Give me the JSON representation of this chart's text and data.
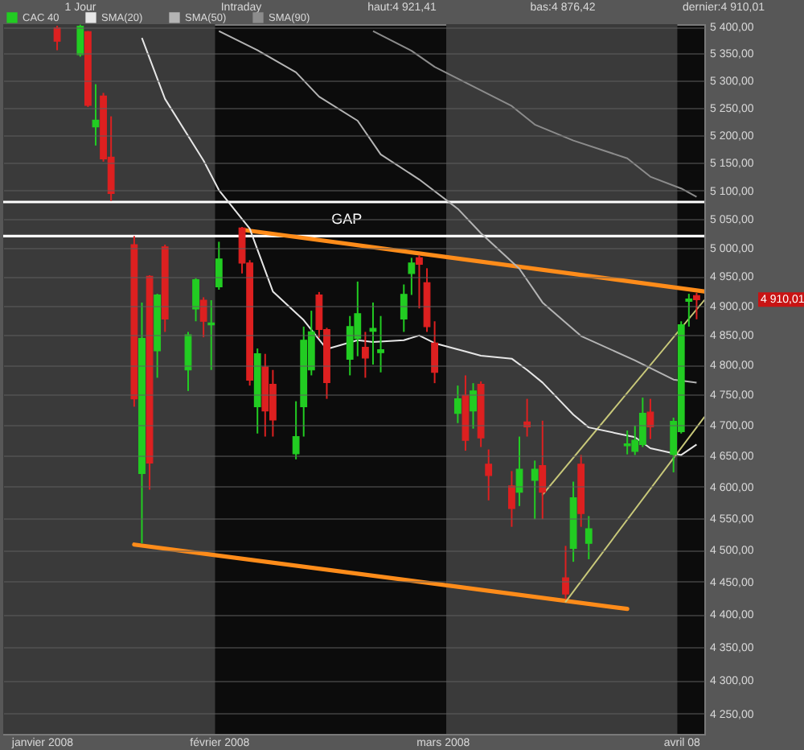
{
  "chart_data": {
    "type": "candlestick",
    "log": true,
    "grid": "y",
    "legend": "top left",
    "xlim": [
      "2008-01-04",
      "2008-04-04"
    ],
    "xticks": [
      {
        "value": "2008-01-09",
        "label": "janvier 2008"
      },
      {
        "value": "2008-02-01",
        "label": "février 2008"
      },
      {
        "value": "2008-03-01",
        "label": "mars 2008"
      },
      {
        "value": "2008-04-01",
        "label": "avril 08"
      }
    ],
    "ylim": [
      4220,
      5405
    ],
    "yticks": [
      {
        "value": 4250,
        "label": "4 250,00"
      },
      {
        "value": 4300,
        "label": "4 300,00"
      },
      {
        "value": 4350,
        "label": "4 350,00"
      },
      {
        "value": 4400,
        "label": "4 400,00"
      },
      {
        "value": 4450,
        "label": "4 450,00"
      },
      {
        "value": 4500,
        "label": "4 500,00"
      },
      {
        "value": 4550,
        "label": "4 550,00"
      },
      {
        "value": 4600,
        "label": "4 600,00"
      },
      {
        "value": 4650,
        "label": "4 650,00"
      },
      {
        "value": 4700,
        "label": "4 700,00"
      },
      {
        "value": 4750,
        "label": "4 750,00"
      },
      {
        "value": 4800,
        "label": "4 800,00"
      },
      {
        "value": 4850,
        "label": "4 850,00"
      },
      {
        "value": 4900,
        "label": "4 900,00"
      },
      {
        "value": 4950,
        "label": "4 950,00"
      },
      {
        "value": 5000,
        "label": "5 000,00"
      },
      {
        "value": 5050,
        "label": "5 050,00"
      },
      {
        "value": 5100,
        "label": "5 100,00"
      },
      {
        "value": 5150,
        "label": "5 150,00"
      },
      {
        "value": 5200,
        "label": "5 200,00"
      },
      {
        "value": 5250,
        "label": "5 250,00"
      },
      {
        "value": 5300,
        "label": "5 300,00"
      },
      {
        "value": 5350,
        "label": "5 350,00"
      },
      {
        "value": 5400,
        "label": "5 400,00"
      }
    ],
    "bands": [
      {
        "axis": "x",
        "from": "2008-01-04",
        "to": "2008-01-31T12:00",
        "color": "#3a3a3a"
      },
      {
        "axis": "x",
        "from": "2008-03-01T12:00",
        "to": "2008-03-31T12:00",
        "color": "#3a3a3a"
      }
    ],
    "ref_lines": [
      {
        "axis": "y",
        "value": 5080,
        "color": "#ffffff"
      },
      {
        "axis": "y",
        "value": 5020,
        "color": "#ffffff"
      }
    ],
    "annotations": [
      "1 Jour",
      "Intraday",
      "haut:4 921,41",
      "bas:4 876,42",
      "dernier:4 910,01",
      "GAP",
      "4 910,01"
    ],
    "series": [
      {
        "name": "CAC 40",
        "color": "#22cc22",
        "x": [
          "2008-01-11",
          "2008-01-14",
          "2008-01-15",
          "2008-01-16",
          "2008-01-17",
          "2008-01-18",
          "2008-01-21",
          "2008-01-22",
          "2008-01-23",
          "2008-01-24",
          "2008-01-25",
          "2008-01-28",
          "2008-01-29",
          "2008-01-30",
          "2008-01-31",
          "2008-02-01",
          "2008-02-04",
          "2008-02-05",
          "2008-02-06",
          "2008-02-07",
          "2008-02-08",
          "2008-02-11",
          "2008-02-12",
          "2008-02-13",
          "2008-02-14",
          "2008-02-15",
          "2008-02-18",
          "2008-02-19",
          "2008-02-20",
          "2008-02-21",
          "2008-02-22",
          "2008-02-25",
          "2008-02-26",
          "2008-02-27",
          "2008-02-28",
          "2008-02-29",
          "2008-03-03",
          "2008-03-04",
          "2008-03-05",
          "2008-03-06",
          "2008-03-07",
          "2008-03-10",
          "2008-03-11",
          "2008-03-12",
          "2008-03-13",
          "2008-03-14",
          "2008-03-17",
          "2008-03-18",
          "2008-03-19",
          "2008-03-20",
          "2008-03-25",
          "2008-03-26",
          "2008-03-27",
          "2008-03-28",
          "2008-03-31",
          "2008-04-01",
          "2008-04-02",
          "2008-04-03"
        ],
        "ohlc": [
          [
            5398,
            5402,
            5356,
            5373
          ],
          [
            5348,
            5404,
            5344,
            5401
          ],
          [
            5391,
            5392,
            5251,
            5254
          ],
          [
            5215,
            5293,
            5181,
            5227
          ],
          [
            5271,
            5277,
            5152,
            5157
          ],
          [
            5160,
            5234,
            5082,
            5095
          ],
          [
            5005,
            5020,
            4730,
            4743
          ],
          [
            4621,
            4905,
            4510,
            4844
          ],
          [
            4950,
            4952,
            4595,
            4638
          ],
          [
            4823,
            4920,
            4778,
            4918
          ],
          [
            5001,
            5005,
            4855,
            4877
          ],
          [
            4791,
            4855,
            4756,
            4850
          ],
          [
            4894,
            4947,
            4873,
            4944
          ],
          [
            4909,
            4914,
            4846,
            4873
          ],
          [
            4867,
            4909,
            4791,
            4870
          ],
          [
            4932,
            5010,
            4927,
            4980
          ],
          [
            5034,
            5036,
            4955,
            4973
          ],
          [
            4973,
            4978,
            4765,
            4774
          ],
          [
            4730,
            4827,
            4686,
            4818
          ],
          [
            4796,
            4818,
            4681,
            4723
          ],
          [
            4767,
            4791,
            4681,
            4708
          ],
          [
            4653,
            4739,
            4644,
            4681
          ],
          [
            4730,
            4864,
            4681,
            4841
          ],
          [
            4791,
            4891,
            4782,
            4855
          ],
          [
            4918,
            4923,
            4845,
            4859
          ],
          [
            4859,
            4862,
            4743,
            4770
          ],
          [
            4809,
            4882,
            4782,
            4864
          ],
          [
            4844,
            4941,
            4814,
            4886
          ],
          [
            4829,
            4855,
            4778,
            4811
          ],
          [
            4856,
            4905,
            4800,
            4861
          ],
          [
            4820,
            4882,
            4787,
            4825
          ],
          [
            4877,
            4936,
            4855,
            4919
          ],
          [
            4955,
            4982,
            4918,
            4973
          ],
          [
            4982,
            4987,
            4895,
            4971
          ],
          [
            4939,
            4964,
            4855,
            4864
          ],
          [
            4836,
            4873,
            4769,
            4787
          ],
          [
            4719,
            4765,
            4703,
            4743
          ],
          [
            4749,
            4782,
            4658,
            4675
          ],
          [
            4723,
            4769,
            4694,
            4756
          ],
          [
            4767,
            4772,
            4664,
            4679
          ],
          [
            4636,
            4660,
            4578,
            4618
          ],
          [
            4601,
            4625,
            4536,
            4565
          ],
          [
            4591,
            4681,
            4569,
            4628
          ],
          [
            4705,
            4743,
            4681,
            4697
          ],
          [
            4610,
            4642,
            4548,
            4628
          ],
          [
            4634,
            4707,
            4548,
            4591
          ],
          [
            4456,
            4506,
            4423,
            4431
          ],
          [
            4502,
            4608,
            4481,
            4582
          ],
          [
            4636,
            4651,
            4536,
            4557
          ],
          [
            4510,
            4553,
            4485,
            4533
          ],
          [
            4666,
            4691,
            4652,
            4669
          ],
          [
            4657,
            4699,
            4651,
            4675
          ],
          [
            4668,
            4745,
            4664,
            4719
          ],
          [
            4721,
            4743,
            4677,
            4697
          ],
          [
            4652,
            4712,
            4623,
            4706
          ],
          [
            4689,
            4873,
            4686,
            4867
          ],
          [
            4907,
            4920,
            4864,
            4911
          ],
          [
            4917,
            4921.41,
            4876.42,
            4910.01
          ]
        ],
        "colors": [
          "#dd2020",
          "#22cc22",
          "#dd2020",
          "#22cc22",
          "#dd2020",
          "#dd2020",
          "#dd2020",
          "#22cc22",
          "#dd2020",
          "#22cc22",
          "#dd2020",
          "#22cc22",
          "#22cc22",
          "#dd2020",
          "#22cc22",
          "#22cc22",
          "#dd2020",
          "#dd2020",
          "#22cc22",
          "#dd2020",
          "#dd2020",
          "#22cc22",
          "#22cc22",
          "#22cc22",
          "#dd2020",
          "#dd2020",
          "#22cc22",
          "#22cc22",
          "#dd2020",
          "#22cc22",
          "#22cc22",
          "#22cc22",
          "#22cc22",
          "#dd2020",
          "#dd2020",
          "#dd2020",
          "#22cc22",
          "#dd2020",
          "#22cc22",
          "#dd2020",
          "#dd2020",
          "#dd2020",
          "#22cc22",
          "#dd2020",
          "#22cc22",
          "#dd2020",
          "#dd2020",
          "#22cc22",
          "#dd2020",
          "#22cc22",
          "#22cc22",
          "#22cc22",
          "#22cc22",
          "#dd2020",
          "#22cc22",
          "#22cc22",
          "#22cc22",
          "#dd2020"
        ]
      },
      {
        "name": "SMA(20)",
        "type": "line",
        "color": "#e6e6e6",
        "x": [
          "2008-01-22",
          "2008-01-25",
          "2008-01-30",
          "2008-02-01",
          "2008-02-05",
          "2008-02-08",
          "2008-02-12",
          "2008-02-15",
          "2008-02-19",
          "2008-02-21",
          "2008-02-25",
          "2008-02-27",
          "2008-02-29",
          "2008-03-04",
          "2008-03-06",
          "2008-03-10",
          "2008-03-12",
          "2008-03-14",
          "2008-03-18",
          "2008-03-20",
          "2008-03-26",
          "2008-03-28",
          "2008-04-01",
          "2008-04-03"
        ],
        "values": [
          5379,
          5266,
          5154,
          5101,
          5033,
          4924,
          4875,
          4826,
          4841,
          4838,
          4841,
          4849,
          4836,
          4822,
          4815,
          4810,
          4791,
          4770,
          4717,
          4696,
          4680,
          4662,
          4651,
          4668
        ]
      },
      {
        "name": "SMA(50)",
        "type": "line",
        "color": "#b4b4b4",
        "x": [
          "2008-02-01",
          "2008-02-06",
          "2008-02-11",
          "2008-02-14",
          "2008-02-19",
          "2008-02-22",
          "2008-02-27",
          "2008-03-03",
          "2008-03-06",
          "2008-03-11",
          "2008-03-14",
          "2008-03-19",
          "2008-03-26",
          "2008-03-31",
          "2008-04-03"
        ],
        "values": [
          5392,
          5356,
          5315,
          5270,
          5226,
          5165,
          5120,
          5068,
          5025,
          4963,
          4905,
          4848,
          4807,
          4775,
          4770
        ]
      },
      {
        "name": "SMA(90)",
        "type": "line",
        "color": "#8c8c8c",
        "x": [
          "2008-02-21",
          "2008-02-26",
          "2008-02-29",
          "2008-03-05",
          "2008-03-10",
          "2008-03-13",
          "2008-03-18",
          "2008-03-25",
          "2008-03-28",
          "2008-04-01",
          "2008-04-03"
        ],
        "values": [
          5392,
          5355,
          5325,
          5289,
          5253,
          5219,
          5190,
          5158,
          5125,
          5104,
          5089
        ]
      },
      {
        "type": "line",
        "color": "#ff8c1a",
        "x": [
          "2008-02-04",
          "2008-04-04"
        ],
        "values": [
          5031,
          4924
        ]
      },
      {
        "type": "line",
        "color": "#ff8c1a",
        "x": [
          "2008-01-21",
          "2008-03-25"
        ],
        "values": [
          4508,
          4408
        ]
      },
      {
        "type": "line",
        "color": "#c8c87a",
        "x": [
          "2008-03-14",
          "2008-04-04"
        ],
        "values": [
          4587,
          4909
        ]
      },
      {
        "type": "line",
        "color": "#c8c87a",
        "x": [
          "2008-03-17",
          "2008-04-04"
        ],
        "values": [
          4419,
          4713
        ]
      }
    ]
  }
}
